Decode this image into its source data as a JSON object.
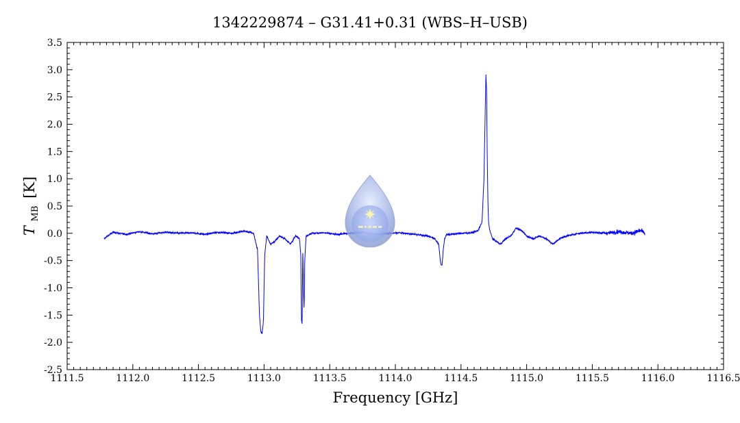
{
  "chart_data": {
    "type": "line",
    "title": "1342229874 – G31.41+0.31 (WBS–H–USB)",
    "xlabel": "Frequency [GHz]",
    "ylabel_main": "T",
    "ylabel_sub": "MB",
    "ylabel_unit": "[K]",
    "xlim": [
      1111.5,
      1116.5
    ],
    "ylim": [
      -2.5,
      3.5
    ],
    "x_ticks": [
      1111.5,
      1112.0,
      1112.5,
      1113.0,
      1113.5,
      1114.0,
      1114.5,
      1115.0,
      1115.5,
      1116.0,
      1116.5
    ],
    "x_tick_labels": [
      "1111.5",
      "1112.0",
      "1112.5",
      "1113.0",
      "1113.5",
      "1114.0",
      "1114.5",
      "1115.0",
      "1115.5",
      "1116.0",
      "1116.5"
    ],
    "y_ticks": [
      -2.5,
      -2.0,
      -1.5,
      -1.0,
      -0.5,
      0.0,
      0.5,
      1.0,
      1.5,
      2.0,
      2.5,
      3.0,
      3.5
    ],
    "y_tick_labels": [
      "-2.5",
      "-2.0",
      "-1.5",
      "-1.0",
      "-0.5",
      "0.0",
      "0.5",
      "1.0",
      "1.5",
      "2.0",
      "2.5",
      "3.0",
      "3.5"
    ],
    "grid": false,
    "line_color": "#0000ff",
    "series": [
      {
        "x": [
          1111.78,
          1111.85,
          1111.95,
          1112.05,
          1112.15,
          1112.25,
          1112.35,
          1112.45,
          1112.55,
          1112.65,
          1112.75,
          1112.85,
          1112.92,
          1112.95,
          1112.965,
          1112.975,
          1112.985,
          1112.995,
          1113.005,
          1113.02,
          1113.05,
          1113.08,
          1113.12,
          1113.16,
          1113.2,
          1113.24,
          1113.27,
          1113.28,
          1113.285,
          1113.29,
          1113.295,
          1113.3,
          1113.305,
          1113.31,
          1113.32,
          1113.36,
          1113.45,
          1113.55,
          1113.65,
          1113.75,
          1113.85,
          1113.95,
          1114.05,
          1114.15,
          1114.25,
          1114.3,
          1114.33,
          1114.345,
          1114.355,
          1114.365,
          1114.375,
          1114.39,
          1114.42,
          1114.5,
          1114.58,
          1114.63,
          1114.66,
          1114.675,
          1114.685,
          1114.69,
          1114.695,
          1114.7,
          1114.705,
          1114.71,
          1114.72,
          1114.74,
          1114.77,
          1114.8,
          1114.84,
          1114.88,
          1114.92,
          1114.96,
          1115.0,
          1115.05,
          1115.1,
          1115.15,
          1115.2,
          1115.25,
          1115.3,
          1115.4,
          1115.5,
          1115.6,
          1115.7,
          1115.8,
          1115.87,
          1115.9
        ],
        "y": [
          -0.1,
          0.02,
          -0.02,
          0.03,
          -0.01,
          0.02,
          0.0,
          0.01,
          -0.02,
          0.02,
          0.0,
          0.04,
          0.0,
          -0.3,
          -1.5,
          -1.8,
          -1.85,
          -1.6,
          -0.4,
          -0.05,
          -0.2,
          -0.15,
          -0.05,
          -0.1,
          -0.2,
          -0.05,
          -0.1,
          -0.4,
          -1.6,
          -1.65,
          -0.3,
          -1.0,
          -1.4,
          -0.5,
          -0.05,
          0.0,
          0.01,
          -0.02,
          0.0,
          0.02,
          -0.02,
          0.0,
          0.01,
          -0.02,
          -0.05,
          -0.1,
          -0.2,
          -0.55,
          -0.6,
          -0.3,
          -0.1,
          -0.02,
          -0.02,
          0.0,
          0.01,
          0.05,
          0.2,
          1.0,
          2.3,
          2.9,
          2.6,
          1.4,
          0.6,
          0.2,
          0.05,
          -0.1,
          -0.15,
          -0.2,
          -0.1,
          -0.05,
          0.1,
          0.05,
          -0.05,
          -0.1,
          -0.05,
          -0.1,
          -0.2,
          -0.1,
          -0.05,
          0.0,
          0.02,
          0.0,
          0.03,
          0.0,
          0.05,
          0.0
        ]
      }
    ]
  }
}
